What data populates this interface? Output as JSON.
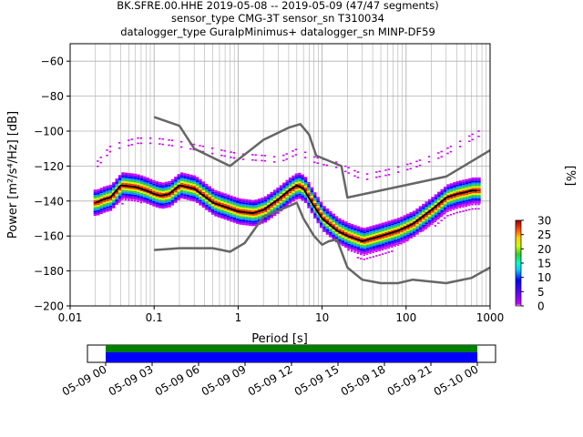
{
  "title_lines": [
    "BK.SFRE.00.HHE   2019-05-08 -- 2019-05-09  (47/47 segments)",
    "sensor_type CMG-3T sensor_sn T310034",
    "datalogger_type GuralpMinimus+ datalogger_sn MINP-DF59"
  ],
  "colorbar": {
    "label": "[%]",
    "ticks": [
      "0",
      "5",
      "10",
      "15",
      "20",
      "25",
      "30"
    ],
    "range": [
      0,
      30
    ]
  },
  "timeline": {
    "ticks": [
      "05-09 00",
      "05-09 03",
      "05-09 06",
      "05-09 09",
      "05-09 12",
      "05-09 15",
      "05-09 18",
      "05-09 21",
      "05-10 00"
    ],
    "bar_colors": {
      "coverage": "#0000ff",
      "gaps": "#008000"
    }
  },
  "colors": {
    "noise_models": "#666666",
    "mean": "#000000",
    "mode_bound": "#cc00ff"
  },
  "chart_data": {
    "type": "heatmap",
    "xlabel": "Period [s]",
    "ylabel": "Power [m²/s⁴/Hz] [dB]",
    "xscale": "log",
    "xlim": [
      0.01,
      1000
    ],
    "ylim": [
      -200,
      -50
    ],
    "xticks": [
      "0.01",
      "0.1",
      "1",
      "10",
      "100",
      "1000"
    ],
    "yticks": [
      "−60",
      "−80",
      "−100",
      "−120",
      "−140",
      "−160",
      "−180",
      "−200"
    ],
    "grid": true,
    "series": [
      {
        "role": "high-noise-model",
        "x": [
          0.1,
          0.2,
          0.3,
          0.8,
          2,
          4,
          5.5,
          7,
          8.5,
          17,
          20,
          300,
          1000
        ],
        "y": [
          -92,
          -97,
          -110,
          -120,
          -105,
          -98,
          -96,
          -102,
          -114,
          -120,
          -138,
          -126,
          -111
        ]
      },
      {
        "role": "low-noise-model",
        "x": [
          0.1,
          0.2,
          0.5,
          0.8,
          1.2,
          2,
          4,
          5,
          6,
          8,
          10,
          12,
          15,
          20,
          30,
          50,
          80,
          120,
          300,
          600,
          1000
        ],
        "y": [
          -168,
          -167,
          -167,
          -169,
          -164,
          -149,
          -143,
          -141,
          -150,
          -160,
          -165,
          -163,
          -162,
          -178,
          -185,
          -187,
          -187,
          -185,
          -187,
          -184,
          -178
        ]
      },
      {
        "role": "mean",
        "x": [
          0.02,
          0.025,
          0.03,
          0.04,
          0.06,
          0.08,
          0.1,
          0.12,
          0.15,
          0.2,
          0.3,
          0.5,
          1,
          1.5,
          2,
          3,
          4,
          5,
          6,
          8,
          10,
          15,
          20,
          30,
          50,
          80,
          120,
          200,
          300,
          400,
          500,
          600,
          700
        ],
        "y": [
          -141,
          -139,
          -138,
          -131,
          -132,
          -134,
          -136,
          -137,
          -136,
          -131,
          -133,
          -141,
          -146,
          -147,
          -145,
          -139,
          -134,
          -131,
          -133,
          -143,
          -150,
          -157,
          -160,
          -163,
          -160,
          -157,
          -153,
          -145,
          -138,
          -136,
          -135,
          -134,
          -134
        ]
      },
      {
        "role": "psd-upper-envelope",
        "x": [
          0.02,
          0.03,
          0.06,
          0.1,
          0.2,
          0.5,
          1,
          2,
          3,
          5,
          8,
          15,
          30,
          60,
          120,
          250,
          500,
          700
        ],
        "y": [
          -118,
          -108,
          -104,
          -104,
          -106,
          -110,
          -113,
          -114,
          -115,
          -110,
          -115,
          -118,
          -125,
          -122,
          -118,
          -112,
          -104,
          -100
        ]
      },
      {
        "role": "psd-lower-envelope",
        "x": [
          0.02,
          0.03,
          0.05,
          0.08,
          0.1,
          0.2,
          0.5,
          1,
          2,
          3,
          5,
          8,
          12,
          20,
          30,
          50,
          80,
          120,
          200,
          400,
          700
        ],
        "y": [
          -145,
          -143,
          -141,
          -141,
          -143,
          -137,
          -146,
          -150,
          -150,
          -142,
          -134,
          -145,
          -158,
          -168,
          -175,
          -172,
          -167,
          -160,
          -155,
          -148,
          -146
        ]
      }
    ]
  }
}
